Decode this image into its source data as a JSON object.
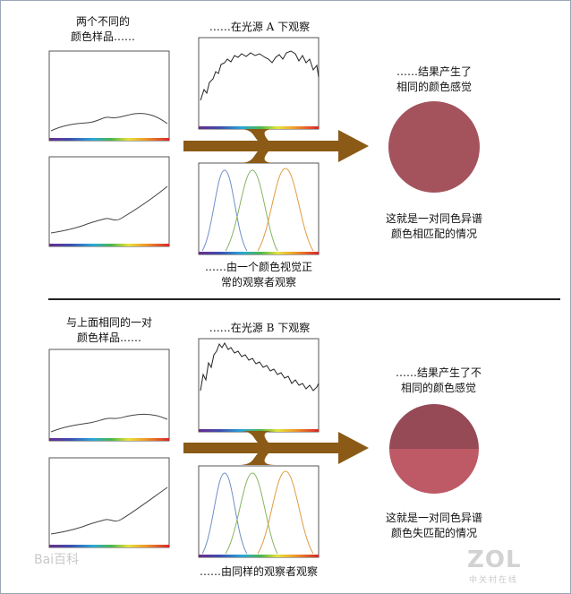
{
  "top": {
    "samples_label": "两个不同的\n颜色样品……",
    "illuminant_label": "……在光源 A 下观察",
    "observer_label": "……由一个颜色视觉正\n常的观察者观察",
    "result_label": "……结果产生了\n相同的颜色感觉",
    "conclusion_label": "这就是一对同色异谱\n颜色相匹配的情况",
    "circle_color": "#a4535d"
  },
  "bottom": {
    "samples_label": "与上面相同的一对\n颜色样品……",
    "illuminant_label": "……在光源 B 下观察",
    "observer_label": "……由同样的观察者观察",
    "result_label": "……结果产生了不\n相同的颜色感觉",
    "conclusion_label": "这就是一对同色异谱\n颜色失匹配的情况",
    "circle_top_color": "#954a55",
    "circle_bottom_color": "#bd5a66"
  },
  "colors": {
    "arrow": "#8a5a16",
    "curve_blue": "#6f8fc7",
    "curve_green": "#86b35f",
    "curve_orange": "#e29a3e"
  },
  "watermarks": {
    "baidu": "Bai百科",
    "zol": "ZOL",
    "zol_sub": "中关村在线"
  }
}
